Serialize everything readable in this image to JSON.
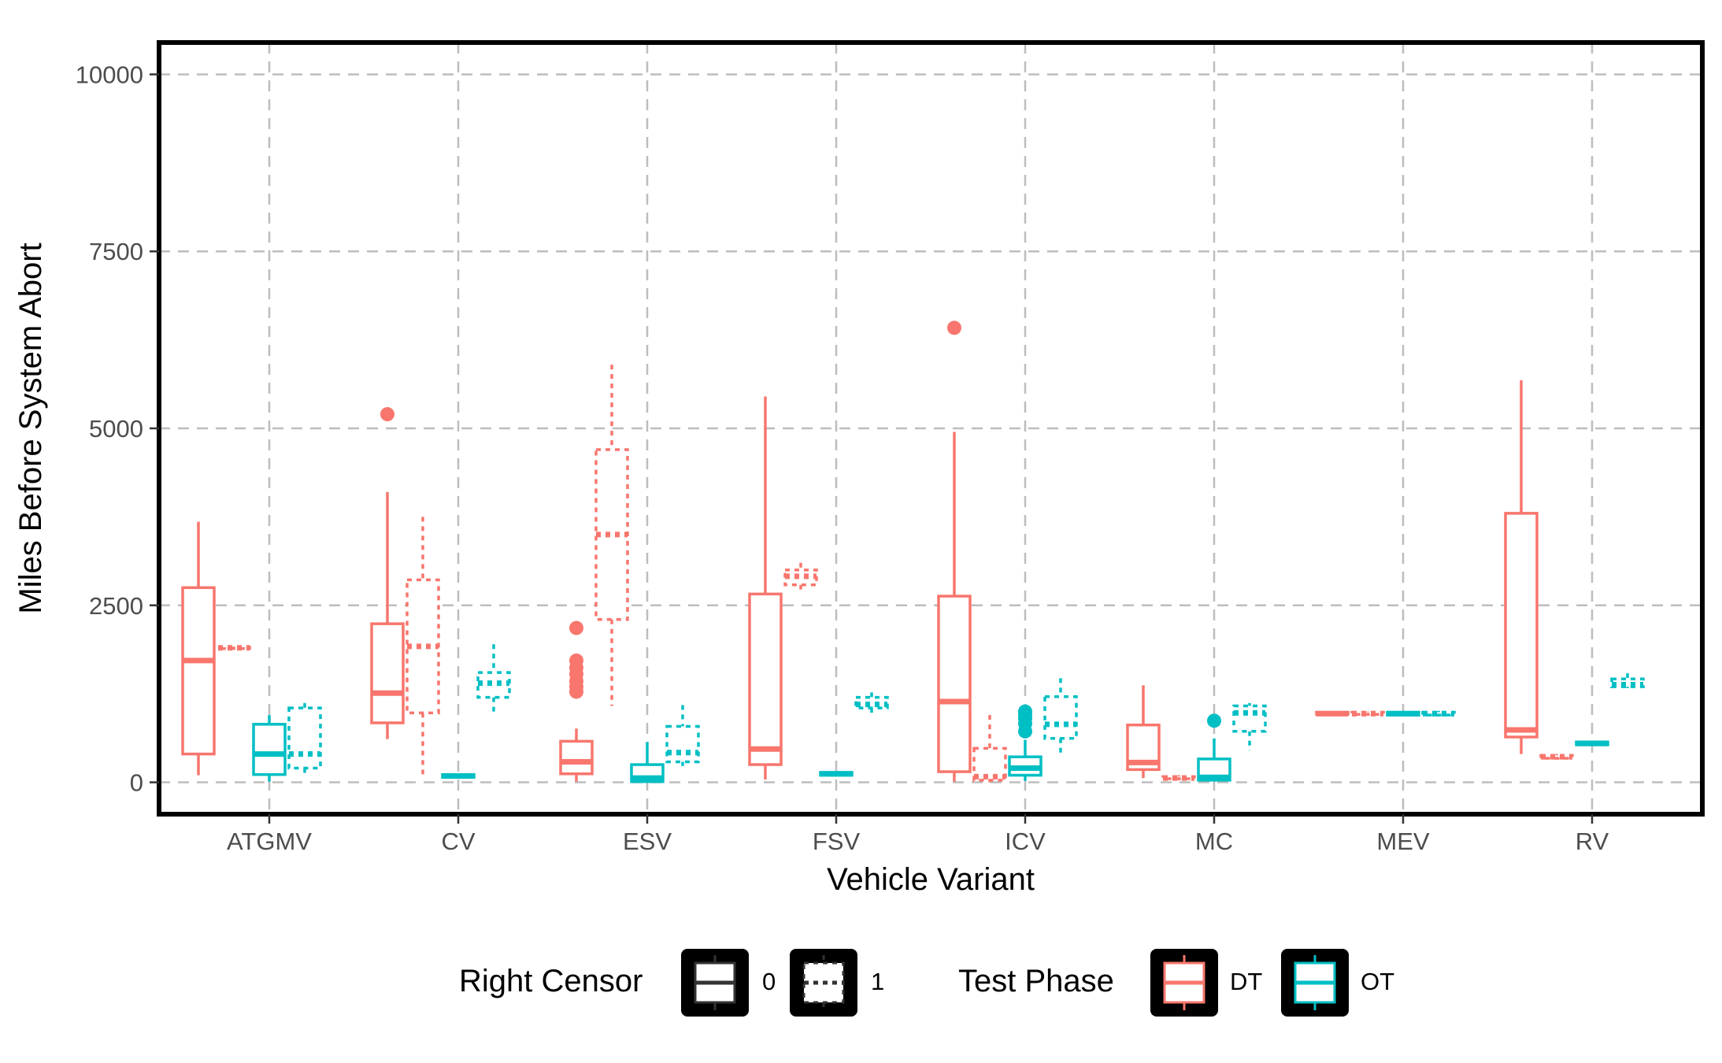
{
  "chart_data": {
    "type": "boxplot",
    "xlabel": "Vehicle Variant",
    "ylabel": "Miles Before System Abort",
    "ylim": [
      -450,
      10450
    ],
    "yticks": [
      0,
      2500,
      5000,
      7500,
      10000
    ],
    "ytick_labels": [
      "0",
      "2500",
      "5000",
      "7500",
      "10000"
    ],
    "categories": [
      "ATGMV",
      "CV",
      "ESV",
      "FSV",
      "ICV",
      "MC",
      "MEV",
      "RV"
    ],
    "grid": true,
    "legend_position": "bottom",
    "legends": [
      {
        "title": "Right Censor",
        "kind": "linetype",
        "keys": [
          "0",
          "1"
        ]
      },
      {
        "title": "Test Phase",
        "kind": "color",
        "keys": [
          "DT",
          "OT"
        ],
        "colors": [
          "#F8766D",
          "#00BFC4"
        ]
      }
    ],
    "series": [
      {
        "category": "ATGMV",
        "phase": "DT",
        "censor": "0",
        "min": 100,
        "q1": 400,
        "median": 1720,
        "q3": 2750,
        "max": 3680,
        "outliers": []
      },
      {
        "category": "ATGMV",
        "phase": "DT",
        "censor": "1",
        "min": 1880,
        "q1": 1890,
        "median": 1900,
        "q3": 1910,
        "max": 1920,
        "outliers": []
      },
      {
        "category": "ATGMV",
        "phase": "OT",
        "censor": "0",
        "min": 10,
        "q1": 110,
        "median": 400,
        "q3": 820,
        "max": 950,
        "outliers": []
      },
      {
        "category": "ATGMV",
        "phase": "OT",
        "censor": "1",
        "min": 130,
        "q1": 200,
        "median": 400,
        "q3": 1050,
        "max": 1120,
        "outliers": []
      },
      {
        "category": "CV",
        "phase": "DT",
        "censor": "0",
        "min": 610,
        "q1": 840,
        "median": 1260,
        "q3": 2240,
        "max": 4100,
        "outliers": [
          5200
        ]
      },
      {
        "category": "CV",
        "phase": "DT",
        "censor": "1",
        "min": 50,
        "q1": 980,
        "median": 1920,
        "q3": 2860,
        "max": 3750,
        "outliers": []
      },
      {
        "category": "CV",
        "phase": "OT",
        "censor": "0",
        "min": 60,
        "q1": 70,
        "median": 90,
        "q3": 110,
        "max": 120,
        "outliers": []
      },
      {
        "category": "CV",
        "phase": "OT",
        "censor": "1",
        "min": 1000,
        "q1": 1200,
        "median": 1400,
        "q3": 1550,
        "max": 1950,
        "outliers": []
      },
      {
        "category": "ESV",
        "phase": "DT",
        "censor": "0",
        "min": 10,
        "q1": 120,
        "median": 290,
        "q3": 580,
        "max": 760,
        "outliers": [
          1280,
          1350,
          1430,
          1530,
          1620,
          1720,
          2180
        ]
      },
      {
        "category": "ESV",
        "phase": "DT",
        "censor": "1",
        "min": 1080,
        "q1": 2300,
        "median": 3500,
        "q3": 4700,
        "max": 5900,
        "outliers": []
      },
      {
        "category": "ESV",
        "phase": "OT",
        "censor": "0",
        "min": 0,
        "q1": 10,
        "median": 60,
        "q3": 250,
        "max": 570,
        "outliers": []
      },
      {
        "category": "ESV",
        "phase": "OT",
        "censor": "1",
        "min": 230,
        "q1": 290,
        "median": 420,
        "q3": 790,
        "max": 1090,
        "outliers": []
      },
      {
        "category": "FSV",
        "phase": "DT",
        "censor": "0",
        "min": 40,
        "q1": 250,
        "median": 470,
        "q3": 2660,
        "max": 5450,
        "outliers": []
      },
      {
        "category": "FSV",
        "phase": "DT",
        "censor": "1",
        "min": 2690,
        "q1": 2790,
        "median": 2910,
        "q3": 3000,
        "max": 3100,
        "outliers": []
      },
      {
        "category": "FSV",
        "phase": "OT",
        "censor": "0",
        "min": 90,
        "q1": 100,
        "median": 120,
        "q3": 140,
        "max": 150,
        "outliers": []
      },
      {
        "category": "FSV",
        "phase": "OT",
        "censor": "1",
        "min": 970,
        "q1": 1050,
        "median": 1100,
        "q3": 1200,
        "max": 1270,
        "outliers": []
      },
      {
        "category": "ICV",
        "phase": "DT",
        "censor": "0",
        "min": 10,
        "q1": 150,
        "median": 1140,
        "q3": 2630,
        "max": 4950,
        "outliers": [
          6420
        ]
      },
      {
        "category": "ICV",
        "phase": "DT",
        "censor": "1",
        "min": 0,
        "q1": 30,
        "median": 80,
        "q3": 480,
        "max": 950,
        "outliers": []
      },
      {
        "category": "ICV",
        "phase": "OT",
        "censor": "0",
        "min": 20,
        "q1": 100,
        "median": 200,
        "q3": 360,
        "max": 600,
        "outliers": [
          720,
          830,
          900,
          960,
          1000
        ]
      },
      {
        "category": "ICV",
        "phase": "OT",
        "censor": "1",
        "min": 360,
        "q1": 620,
        "median": 820,
        "q3": 1210,
        "max": 1470,
        "outliers": []
      },
      {
        "category": "MC",
        "phase": "DT",
        "censor": "0",
        "min": 60,
        "q1": 180,
        "median": 280,
        "q3": 810,
        "max": 1370,
        "outliers": []
      },
      {
        "category": "MC",
        "phase": "DT",
        "censor": "1",
        "min": 30,
        "q1": 50,
        "median": 60,
        "q3": 80,
        "max": 100,
        "outliers": []
      },
      {
        "category": "MC",
        "phase": "OT",
        "censor": "0",
        "min": 10,
        "q1": 30,
        "median": 70,
        "q3": 330,
        "max": 620,
        "outliers": [
          870
        ]
      },
      {
        "category": "MC",
        "phase": "OT",
        "censor": "1",
        "min": 450,
        "q1": 720,
        "median": 980,
        "q3": 1080,
        "max": 1120,
        "outliers": []
      },
      {
        "category": "MEV",
        "phase": "DT",
        "censor": "0",
        "min": 950,
        "q1": 960,
        "median": 970,
        "q3": 990,
        "max": 1000,
        "outliers": []
      },
      {
        "category": "MEV",
        "phase": "DT",
        "censor": "1",
        "min": 950,
        "q1": 960,
        "median": 970,
        "q3": 990,
        "max": 1000,
        "outliers": []
      },
      {
        "category": "MEV",
        "phase": "OT",
        "censor": "0",
        "min": 930,
        "q1": 950,
        "median": 970,
        "q3": 990,
        "max": 1010,
        "outliers": []
      },
      {
        "category": "MEV",
        "phase": "OT",
        "censor": "1",
        "min": 930,
        "q1": 950,
        "median": 970,
        "q3": 990,
        "max": 1010,
        "outliers": []
      },
      {
        "category": "RV",
        "phase": "DT",
        "censor": "0",
        "min": 400,
        "q1": 640,
        "median": 740,
        "q3": 3800,
        "max": 5680,
        "outliers": []
      },
      {
        "category": "RV",
        "phase": "DT",
        "censor": "1",
        "min": 320,
        "q1": 340,
        "median": 360,
        "q3": 380,
        "max": 400,
        "outliers": []
      },
      {
        "category": "RV",
        "phase": "OT",
        "censor": "0",
        "min": 520,
        "q1": 530,
        "median": 550,
        "q3": 570,
        "max": 580,
        "outliers": []
      },
      {
        "category": "RV",
        "phase": "OT",
        "censor": "1",
        "min": 1330,
        "q1": 1350,
        "median": 1380,
        "q3": 1460,
        "max": 1540,
        "outliers": []
      }
    ]
  }
}
